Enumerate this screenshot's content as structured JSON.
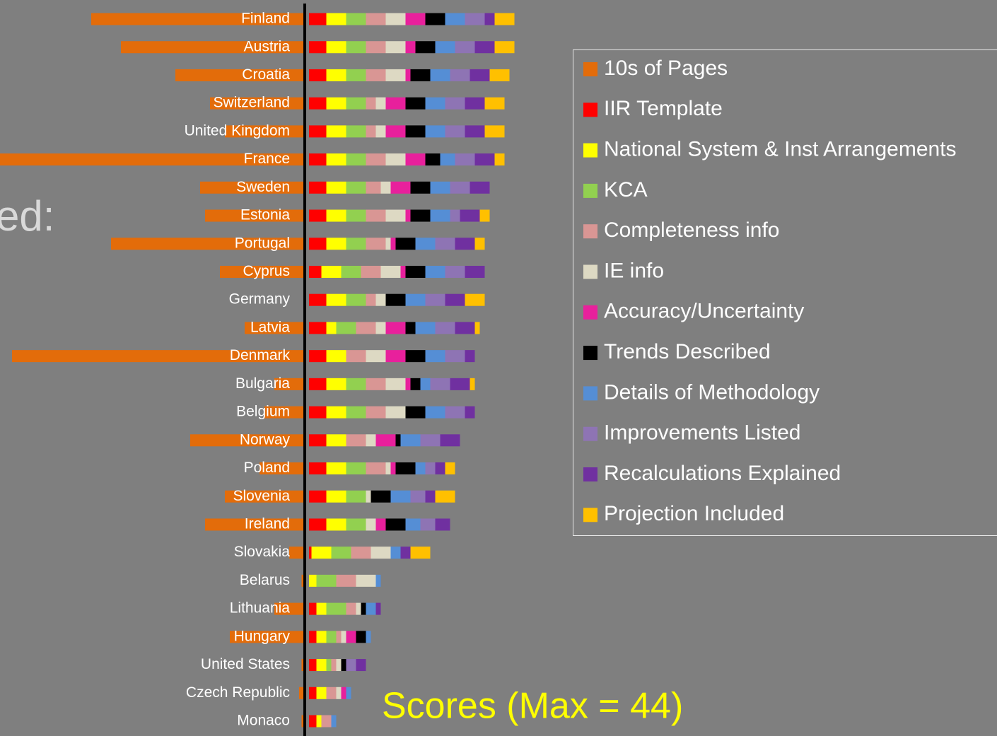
{
  "background_text": "ed:",
  "chart_data": {
    "type": "bar",
    "orientation": "horizontal",
    "stacked": true,
    "title": "Scores (Max = 44)",
    "legend": "right",
    "categories": [
      "Finland",
      "Austria",
      "Croatia",
      "Switzerland",
      "United Kingdom",
      "France",
      "Sweden",
      "Estonia",
      "Portugal",
      "Cyprus",
      "Germany",
      "Latvia",
      "Denmark",
      "Bulgaria",
      "Belgium",
      "Norway",
      "Poland",
      "Slovenia",
      "Ireland",
      "Slovakia",
      "Belarus",
      "Lithuania",
      "Hungary",
      "United States",
      "Czech Republic",
      "Monaco"
    ],
    "series": [
      {
        "name": "10s of Pages",
        "color": "#e36c0a",
        "direction": "left",
        "values": [
          43,
          37,
          26,
          19,
          16,
          65,
          21,
          20,
          39,
          17,
          0,
          12,
          59,
          6,
          8,
          23,
          9,
          16,
          20,
          3,
          0.5,
          6,
          15,
          0.5,
          1,
          0.5
        ]
      },
      {
        "name": "IIR Template",
        "color": "#ff0000",
        "values": [
          3.5,
          3.5,
          3.5,
          3.5,
          3.5,
          3.5,
          3.5,
          3.5,
          3.5,
          2.5,
          3.5,
          3.5,
          3.5,
          3.5,
          3.5,
          3.5,
          3.5,
          3.5,
          3.5,
          0.5,
          0,
          1.5,
          1.5,
          1.5,
          1.5,
          1.5
        ]
      },
      {
        "name": "National System & Inst Arrangements",
        "color": "#ffff00",
        "values": [
          4,
          4,
          4,
          4,
          4,
          4,
          4,
          4,
          4,
          4,
          4,
          2,
          4,
          4,
          4,
          4,
          4,
          4,
          4,
          4,
          1.5,
          2,
          2,
          2,
          2,
          1
        ]
      },
      {
        "name": "KCA",
        "color": "#92d050",
        "values": [
          4,
          4,
          4,
          4,
          4,
          4,
          4,
          4,
          4,
          4,
          4,
          4,
          0,
          4,
          4,
          0,
          4,
          4,
          4,
          4,
          4,
          4,
          2,
          1,
          0,
          0
        ]
      },
      {
        "name": "Completeness info",
        "color": "#d99694",
        "values": [
          4,
          4,
          4,
          2,
          2,
          4,
          3,
          4,
          4,
          4,
          2,
          4,
          4,
          4,
          4,
          4,
          4,
          0,
          0,
          4,
          4,
          2,
          1,
          1,
          2,
          2
        ]
      },
      {
        "name": "IE info",
        "color": "#ddd9c3",
        "values": [
          4,
          4,
          4,
          2,
          2,
          4,
          2,
          4,
          1,
          4,
          2,
          2,
          4,
          4,
          4,
          2,
          1,
          1,
          2,
          4,
          4,
          1,
          1,
          1,
          1,
          0
        ]
      },
      {
        "name": "Accuracy/Uncertainty",
        "color": "#e8209c",
        "values": [
          4,
          2,
          1,
          4,
          4,
          4,
          4,
          1,
          1,
          1,
          0,
          4,
          4,
          1,
          0,
          4,
          1,
          0,
          2,
          0,
          0,
          0,
          2,
          0,
          1,
          0
        ]
      },
      {
        "name": "Trends Described",
        "color": "#000000",
        "values": [
          4,
          4,
          4,
          4,
          4,
          3,
          4,
          4,
          4,
          4,
          4,
          2,
          4,
          2,
          4,
          1,
          4,
          4,
          4,
          0,
          0,
          1,
          2,
          1,
          0,
          0
        ]
      },
      {
        "name": "Details of Methodology",
        "color": "#558ed5",
        "values": [
          4,
          4,
          4,
          4,
          4,
          3,
          4,
          4,
          4,
          4,
          4,
          4,
          4,
          2,
          4,
          4,
          2,
          4,
          3,
          2,
          1,
          2,
          1,
          0,
          1,
          1
        ]
      },
      {
        "name": "Improvements  Listed",
        "color": "#8e74b4",
        "values": [
          4,
          4,
          4,
          4,
          4,
          4,
          4,
          2,
          4,
          4,
          4,
          4,
          4,
          4,
          4,
          4,
          2,
          3,
          3,
          0,
          0,
          0,
          0,
          2,
          0,
          0
        ]
      },
      {
        "name": "Recalculations Explained",
        "color": "#7030a0",
        "values": [
          2,
          4,
          4,
          4,
          4,
          4,
          4,
          4,
          4,
          4,
          4,
          4,
          2,
          4,
          2,
          4,
          2,
          2,
          3,
          2,
          0,
          1,
          0,
          2,
          0,
          0
        ]
      },
      {
        "name": "Projection Included",
        "color": "#ffc000",
        "values": [
          4,
          4,
          4,
          4,
          4,
          2,
          0,
          2,
          2,
          0,
          4,
          1,
          0,
          1,
          0,
          0,
          2,
          4,
          0,
          4,
          0,
          0,
          0,
          0,
          0,
          0
        ]
      }
    ]
  }
}
